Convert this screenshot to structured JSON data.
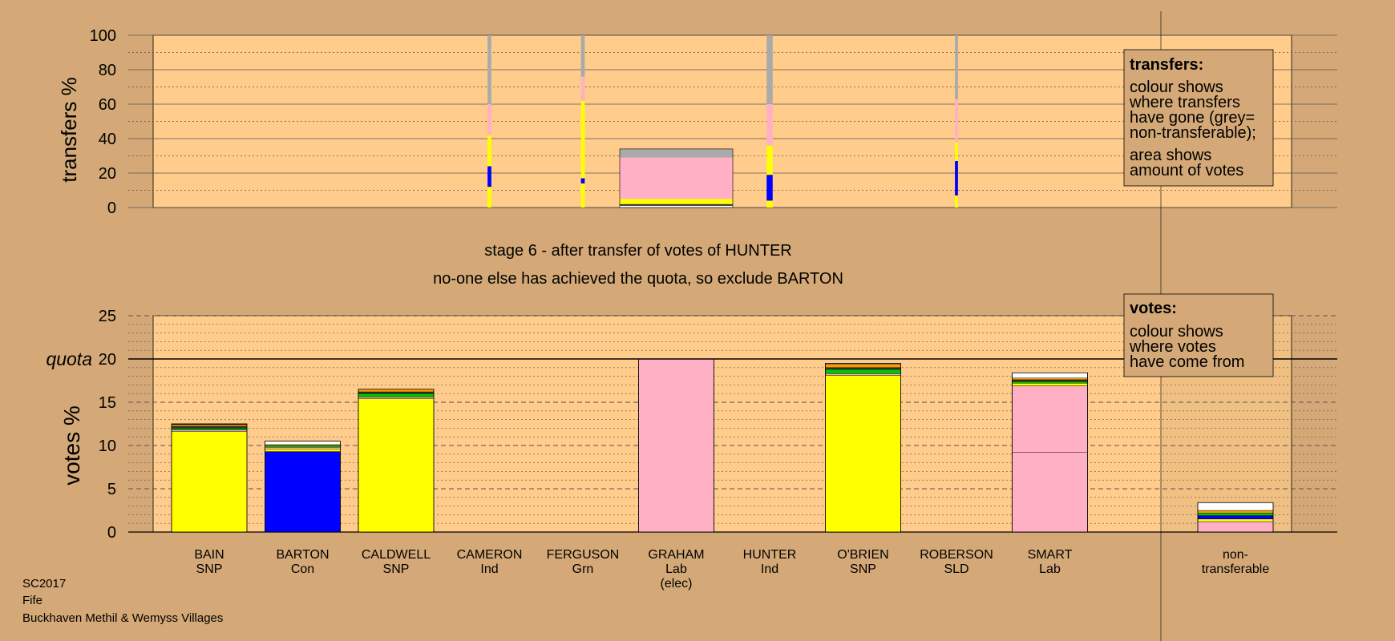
{
  "context": {
    "election": "SC2017",
    "council": "Fife",
    "ward": "Buckhaven Methil & Wemyss Villages"
  },
  "stage": {
    "title": "stage 6 - after transfer of votes of HUNTER",
    "subtitle": "no-one else has achieved the quota, so exclude BARTON"
  },
  "legend_transfers": {
    "title": "transfers:",
    "lines": [
      "colour shows",
      "where transfers",
      "have gone (grey=",
      "non-transferable);"
    ],
    "lines2": [
      "area shows",
      "amount of votes"
    ]
  },
  "legend_votes": {
    "title": "votes:",
    "lines": [
      "colour shows",
      "where votes",
      "have come from"
    ]
  },
  "colors": {
    "background": "#d4a977",
    "plot_bg": "#ffcc8c",
    "SNP": "#ffff00",
    "Con": "#0000ff",
    "Lab": "#ffb0c4",
    "Grn": "#00c800",
    "Ind": "#333333",
    "SLD": "#ff9900",
    "nontransferable": "#aaaaaa",
    "white": "#ffffff"
  },
  "chart_data": [
    {
      "type": "bar",
      "name": "transfers",
      "ylabel": "transfers %",
      "ylim": [
        0,
        100
      ],
      "yticks": [
        0,
        20,
        40,
        60,
        80,
        100
      ],
      "transfers": [
        {
          "candidate": "CAMERON",
          "width_scale": 0.05,
          "segments": [
            [
              0,
              5,
              "SNP"
            ],
            [
              5,
              12,
              "SNP"
            ],
            [
              12,
              24,
              "Con"
            ],
            [
              24,
              42,
              "SNP"
            ],
            [
              42,
              60,
              "Lab"
            ],
            [
              60,
              100,
              "nontransferable"
            ]
          ]
        },
        {
          "candidate": "FERGUSON",
          "width_scale": 0.05,
          "segments": [
            [
              0,
              14,
              "SNP"
            ],
            [
              14,
              17,
              "Con"
            ],
            [
              17,
              62,
              "SNP"
            ],
            [
              62,
              76,
              "Lab"
            ],
            [
              76,
              100,
              "nontransferable"
            ]
          ]
        },
        {
          "candidate": "GRAHAM",
          "width_scale": 1.0,
          "segments": [
            [
              0,
              1,
              "white"
            ],
            [
              1,
              2,
              "Ind"
            ],
            [
              2,
              5,
              "SNP"
            ],
            [
              5,
              29,
              "Lab"
            ],
            [
              29,
              34,
              "nontransferable"
            ]
          ]
        },
        {
          "candidate": "HUNTER",
          "width_scale": 0.08,
          "segments": [
            [
              0,
              4,
              "SNP"
            ],
            [
              4,
              19,
              "Con"
            ],
            [
              19,
              36,
              "SNP"
            ],
            [
              36,
              60,
              "Lab"
            ],
            [
              60,
              100,
              "nontransferable"
            ]
          ]
        },
        {
          "candidate": "ROBERSON",
          "width_scale": 0.04,
          "segments": [
            [
              0,
              7,
              "SNP"
            ],
            [
              7,
              27,
              "Con"
            ],
            [
              27,
              38,
              "SNP"
            ],
            [
              38,
              63,
              "Lab"
            ],
            [
              63,
              100,
              "nontransferable"
            ]
          ]
        }
      ]
    },
    {
      "type": "bar",
      "name": "votes",
      "ylabel": "votes %",
      "ylim": [
        0,
        25
      ],
      "yticks": [
        0,
        5,
        10,
        15,
        20,
        25
      ],
      "quota": 20,
      "quota_label": "quota",
      "candidates": [
        {
          "name": "BAIN",
          "party": "SNP",
          "note": "",
          "segments": [
            [
              0,
              11.6,
              "SNP"
            ],
            [
              11.6,
              11.8,
              "Lab"
            ],
            [
              11.8,
              12.0,
              "Grn"
            ],
            [
              12.0,
              12.2,
              "Ind"
            ],
            [
              12.2,
              12.4,
              "SLD"
            ],
            [
              12.4,
              12.5,
              "Ind"
            ]
          ]
        },
        {
          "name": "BARTON",
          "party": "Con",
          "note": "",
          "segments": [
            [
              0,
              9.3,
              "Con"
            ],
            [
              9.3,
              9.6,
              "SNP"
            ],
            [
              9.6,
              9.8,
              "Lab"
            ],
            [
              9.8,
              10.0,
              "Grn"
            ],
            [
              10.0,
              10.1,
              "SLD"
            ],
            [
              10.1,
              10.5,
              "white"
            ]
          ]
        },
        {
          "name": "CALDWELL",
          "party": "SNP",
          "note": "",
          "segments": [
            [
              0,
              15.4,
              "SNP"
            ],
            [
              15.4,
              15.6,
              "Lab"
            ],
            [
              15.6,
              16.0,
              "Grn"
            ],
            [
              16.0,
              16.2,
              "Ind"
            ],
            [
              16.2,
              16.5,
              "SLD"
            ]
          ]
        },
        {
          "name": "CAMERON",
          "party": "Ind",
          "note": "",
          "segments": []
        },
        {
          "name": "FERGUSON",
          "party": "Grn",
          "note": "",
          "segments": []
        },
        {
          "name": "GRAHAM",
          "party": "Lab",
          "note": "(elec)",
          "segments": [
            [
              0,
              20,
              "Lab"
            ]
          ]
        },
        {
          "name": "HUNTER",
          "party": "Ind",
          "note": "",
          "segments": []
        },
        {
          "name": "O'BRIEN",
          "party": "SNP",
          "note": "",
          "segments": [
            [
              0,
              18.1,
              "SNP"
            ],
            [
              18.1,
              18.3,
              "Lab"
            ],
            [
              18.3,
              18.8,
              "Grn"
            ],
            [
              18.8,
              19.0,
              "Ind"
            ],
            [
              19.0,
              19.4,
              "SLD"
            ],
            [
              19.4,
              19.5,
              "white"
            ]
          ]
        },
        {
          "name": "ROBERSON",
          "party": "SLD",
          "note": "",
          "segments": []
        },
        {
          "name": "SMART",
          "party": "Lab",
          "note": "",
          "segments": [
            [
              0,
              9.2,
              "Lab"
            ],
            [
              9.2,
              16.9,
              "Lab"
            ],
            [
              16.9,
              17.2,
              "SNP"
            ],
            [
              17.2,
              17.4,
              "Grn"
            ],
            [
              17.4,
              17.6,
              "Ind"
            ],
            [
              17.6,
              17.8,
              "SLD"
            ],
            [
              17.8,
              18.4,
              "white"
            ]
          ]
        }
      ],
      "nontransferable": {
        "label1": "non-",
        "label2": "transferable",
        "segments": [
          [
            0,
            1.2,
            "Lab"
          ],
          [
            1.2,
            1.5,
            "SNP"
          ],
          [
            1.5,
            1.9,
            "Con"
          ],
          [
            1.9,
            2.2,
            "Grn"
          ],
          [
            2.2,
            2.5,
            "SLD"
          ],
          [
            2.5,
            3.4,
            "white"
          ]
        ]
      }
    }
  ]
}
